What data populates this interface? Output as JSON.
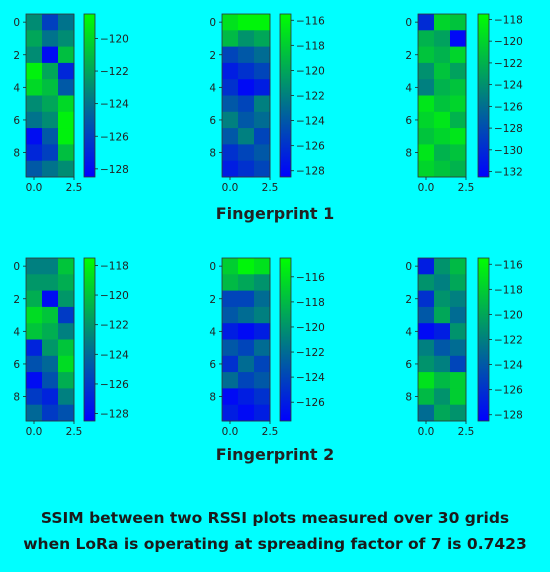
{
  "captions": {
    "fingerprint1": "Fingerprint 1",
    "fingerprint2": "Fingerprint 2",
    "summary_line1": "SSIM between two RSSI plots measured over 30 grids",
    "summary_line2": "when LoRa is operating at spreading factor of 7 is 0.7423"
  },
  "colors": {
    "background": "#00ffff",
    "colormap_low": "#0000ff",
    "colormap_high": "#00ff00"
  },
  "chart_data": [
    {
      "type": "heatmap",
      "group": "Fingerprint 1",
      "panel": 1,
      "rows": 10,
      "cols": 3,
      "xticks": [
        "0.0",
        "2.5"
      ],
      "yticks": [
        "0",
        "2",
        "4",
        "6",
        "8"
      ],
      "colorbar": {
        "min": -128.5,
        "max": -118.5,
        "ticks": [
          -120,
          -122,
          -124,
          -126,
          -128
        ]
      },
      "values": [
        [
          -123,
          -126,
          -124
        ],
        [
          -122,
          -124,
          -123
        ],
        [
          -123,
          -128,
          -121
        ],
        [
          -119,
          -122,
          -127
        ],
        [
          -120,
          -121,
          -125
        ],
        [
          -123,
          -122,
          -120
        ],
        [
          -124,
          -123,
          -119
        ],
        [
          -128,
          -125,
          -119
        ],
        [
          -127,
          -126,
          -121
        ],
        [
          -125,
          -124,
          -123
        ]
      ]
    },
    {
      "type": "heatmap",
      "group": "Fingerprint 1",
      "panel": 2,
      "rows": 10,
      "cols": 3,
      "xticks": [
        "0.0",
        "2.5"
      ],
      "yticks": [
        "0",
        "2",
        "4",
        "6",
        "8"
      ],
      "colorbar": {
        "min": -128.5,
        "max": -115.5,
        "ticks": [
          -116,
          -118,
          -120,
          -122,
          -124,
          -126,
          -128
        ]
      },
      "values": [
        [
          -117,
          -116,
          -116
        ],
        [
          -119,
          -121,
          -120
        ],
        [
          -125,
          -124,
          -123
        ],
        [
          -127,
          -126,
          -125
        ],
        [
          -126,
          -128,
          -127
        ],
        [
          -124,
          -125,
          -122
        ],
        [
          -122,
          -124,
          -123
        ],
        [
          -124,
          -122,
          -125
        ],
        [
          -126,
          -125,
          -124
        ],
        [
          -127,
          -126,
          -125
        ]
      ]
    },
    {
      "type": "heatmap",
      "group": "Fingerprint 1",
      "panel": 3,
      "rows": 10,
      "cols": 3,
      "xticks": [
        "0.0",
        "2.5"
      ],
      "yticks": [
        "0",
        "2",
        "4",
        "6",
        "8"
      ],
      "colorbar": {
        "min": -132.5,
        "max": -117.5,
        "ticks": [
          -118,
          -120,
          -122,
          -124,
          -126,
          -128,
          -130,
          -132
        ]
      },
      "values": [
        [
          -130,
          -120,
          -121
        ],
        [
          -122,
          -123,
          -132
        ],
        [
          -121,
          -122,
          -120
        ],
        [
          -124,
          -121,
          -123
        ],
        [
          -125,
          -122,
          -121
        ],
        [
          -119,
          -121,
          -120
        ],
        [
          -120,
          -119,
          -122
        ],
        [
          -121,
          -120,
          -119
        ],
        [
          -119,
          -122,
          -121
        ],
        [
          -120,
          -121,
          -122
        ]
      ]
    },
    {
      "type": "heatmap",
      "group": "Fingerprint 2",
      "panel": 1,
      "rows": 10,
      "cols": 3,
      "xticks": [
        "0.0",
        "2.5"
      ],
      "yticks": [
        "0",
        "2",
        "4",
        "6",
        "8"
      ],
      "colorbar": {
        "min": -128.5,
        "max": -117.5,
        "ticks": [
          -118,
          -120,
          -122,
          -124,
          -126,
          -128
        ]
      },
      "values": [
        [
          -123,
          -123,
          -120
        ],
        [
          -122,
          -122,
          -121
        ],
        [
          -121,
          -128,
          -122
        ],
        [
          -119,
          -120,
          -126
        ],
        [
          -120,
          -121,
          -123
        ],
        [
          -127,
          -122,
          -120
        ],
        [
          -125,
          -124,
          -119
        ],
        [
          -128,
          -125,
          -121
        ],
        [
          -126,
          -127,
          -123
        ],
        [
          -124,
          -126,
          -125
        ]
      ]
    },
    {
      "type": "heatmap",
      "group": "Fingerprint 2",
      "panel": 2,
      "rows": 10,
      "cols": 3,
      "xticks": [
        "0.0",
        "2.5"
      ],
      "yticks": [
        "0",
        "2",
        "4",
        "6",
        "8"
      ],
      "colorbar": {
        "min": -127.5,
        "max": -114.5,
        "ticks": [
          -116,
          -118,
          -120,
          -122,
          -124,
          -126
        ]
      },
      "values": [
        [
          -117,
          -115,
          -116
        ],
        [
          -118,
          -119,
          -120
        ],
        [
          -124,
          -124,
          -122
        ],
        [
          -123,
          -122,
          -121
        ],
        [
          -126,
          -127,
          -126
        ],
        [
          -123,
          -124,
          -122
        ],
        [
          -125,
          -122,
          -124
        ],
        [
          -122,
          -124,
          -123
        ],
        [
          -127,
          -126,
          -125
        ],
        [
          -126,
          -127,
          -126
        ]
      ]
    },
    {
      "type": "heatmap",
      "group": "Fingerprint 2",
      "panel": 3,
      "rows": 10,
      "cols": 3,
      "xticks": [
        "0.0",
        "2.5"
      ],
      "yticks": [
        "0",
        "2",
        "4",
        "6",
        "8"
      ],
      "colorbar": {
        "min": -128.5,
        "max": -115.5,
        "ticks": [
          -116,
          -118,
          -120,
          -122,
          -124,
          -126,
          -128
        ]
      },
      "values": [
        [
          -127,
          -121,
          -119
        ],
        [
          -121,
          -122,
          -120
        ],
        [
          -126,
          -121,
          -122
        ],
        [
          -124,
          -120,
          -123
        ],
        [
          -128,
          -127,
          -121
        ],
        [
          -122,
          -124,
          -123
        ],
        [
          -121,
          -122,
          -125
        ],
        [
          -117,
          -119,
          -118
        ],
        [
          -119,
          -121,
          -118
        ],
        [
          -123,
          -120,
          -121
        ]
      ]
    }
  ]
}
